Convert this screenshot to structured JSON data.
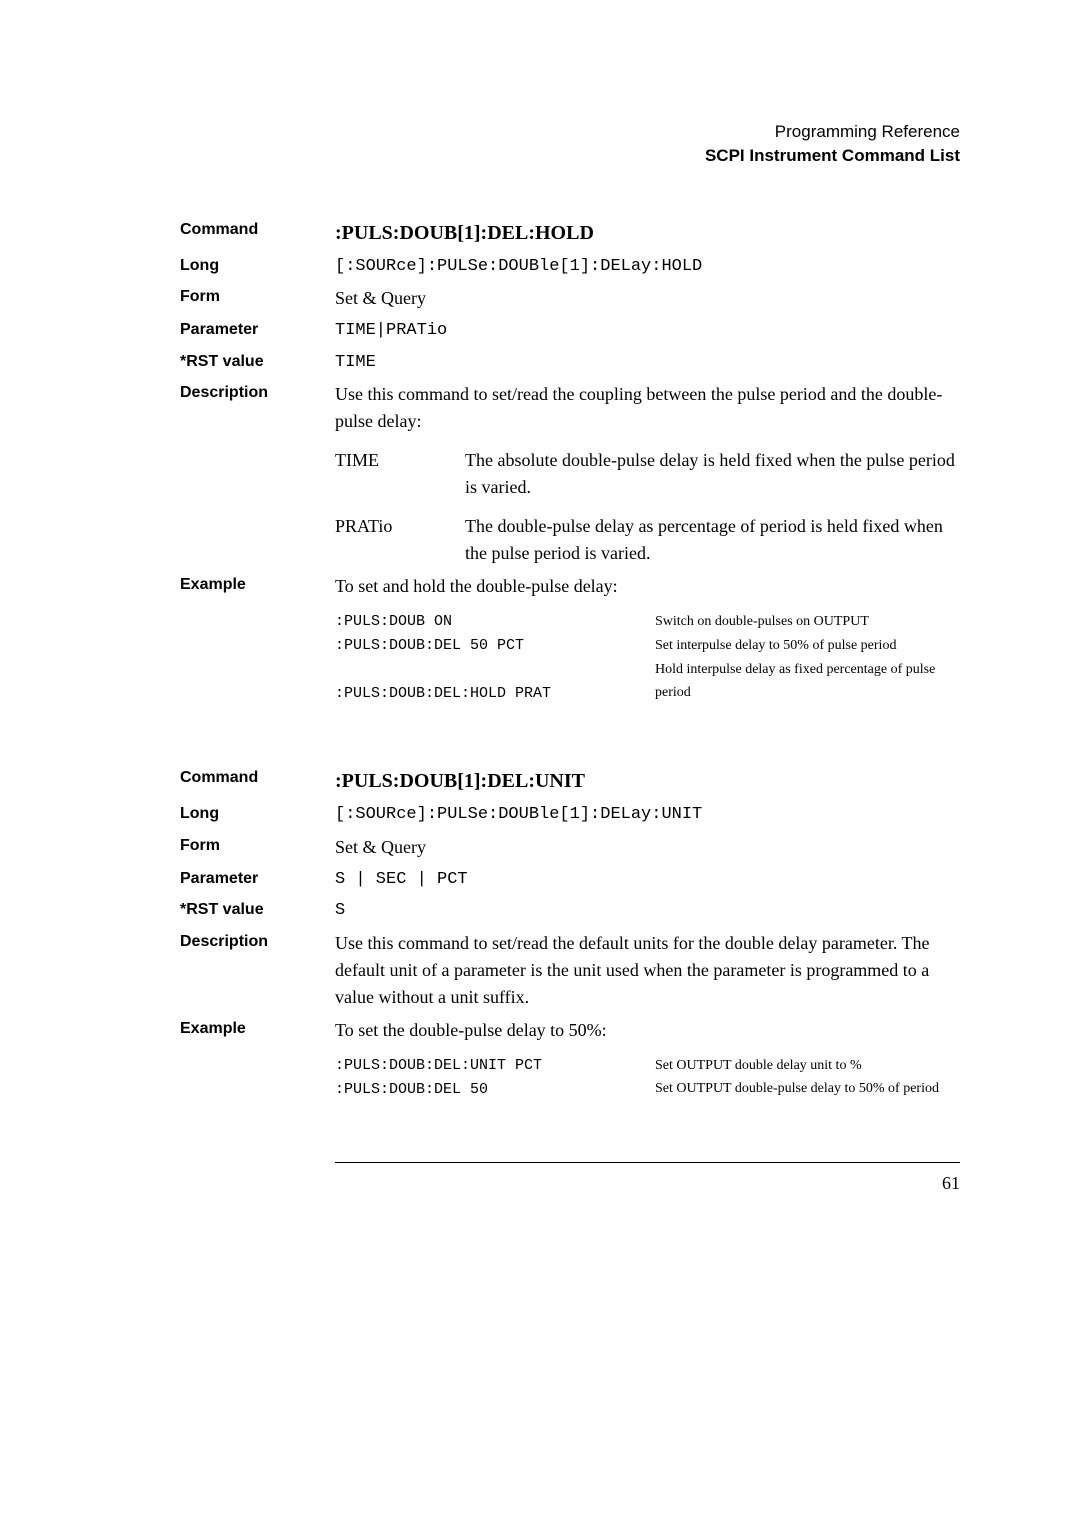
{
  "header": {
    "line1": "Programming Reference",
    "line2": "SCPI Instrument Command List"
  },
  "block1": {
    "command_label": "Command",
    "command_value": ":PULS:DOUB[1]:DEL:HOLD",
    "long_label": "Long",
    "long_value": "[:SOURce]:PULSe:DOUBle[1]:DELay:HOLD",
    "form_label": "Form",
    "form_value": "Set & Query",
    "parameter_label": "Parameter",
    "parameter_value": "TIME|PRATio",
    "rst_label": "*RST value",
    "rst_value": "TIME",
    "description_label": "Description",
    "description_text": "Use this command to set/read the coupling between the pulse period and the double-pulse delay:",
    "time_key": "TIME",
    "time_text": "The absolute double-pulse delay is held fixed when the pulse period is varied.",
    "pratio_key": "PRATio",
    "pratio_text": "The double-pulse delay as percentage of period is held fixed when the pulse period is varied.",
    "example_label": "Example",
    "example_lead": "To set and hold the double-pulse delay:",
    "example_code": ":PULS:DOUB ON\n:PULS:DOUB:DEL 50 PCT\n\n:PULS:DOUB:DEL:HOLD PRAT",
    "example_desc_l1": "Switch on double-pulses on OUTPUT",
    "example_desc_l2": "Set interpulse delay to 50% of pulse period",
    "example_desc_l3": "Hold interpulse delay as fixed percentage of pulse period"
  },
  "block2": {
    "command_label": "Command",
    "command_value": ":PULS:DOUB[1]:DEL:UNIT",
    "long_label": "Long",
    "long_value": "[:SOURce]:PULSe:DOUBle[1]:DELay:UNIT",
    "form_label": "Form",
    "form_value": "Set & Query",
    "parameter_label": "Parameter",
    "parameter_value": "S | SEC | PCT",
    "rst_label": "*RST value",
    "rst_value": "S",
    "description_label": "Description",
    "description_text": "Use this command to set/read the default units for the double delay parameter. The default unit of a parameter is the unit used when the parameter is programmed to a value without a unit suffix.",
    "example_label": "Example",
    "example_lead": "To set the double-pulse delay to 50%:",
    "example_code": ":PULS:DOUB:DEL:UNIT PCT\n:PULS:DOUB:DEL 50",
    "example_desc_l1": "Set OUTPUT double delay unit to %",
    "example_desc_l2": "Set OUTPUT double-pulse delay to 50% of period"
  },
  "pagenum": "61"
}
